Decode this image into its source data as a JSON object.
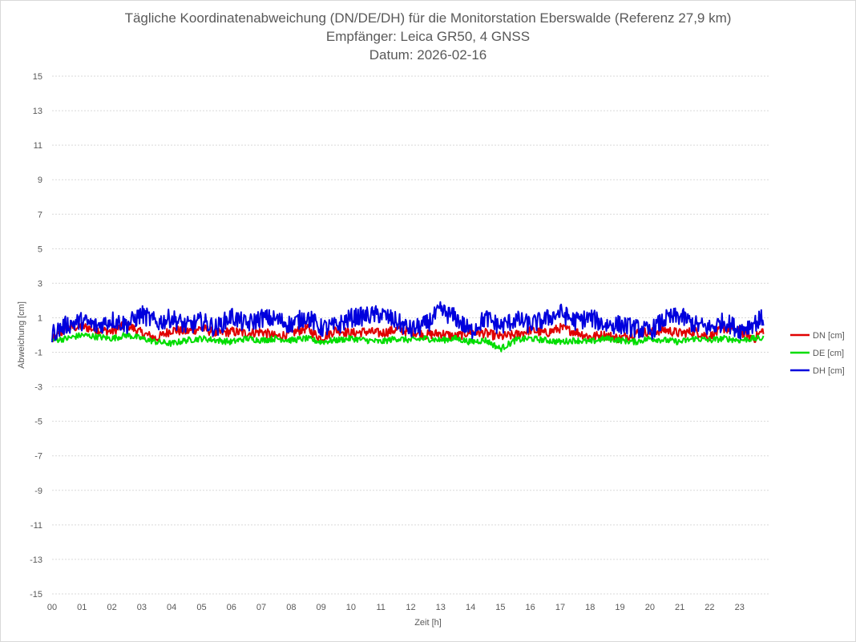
{
  "chart_data": {
    "type": "line",
    "title": "Tägliche Koordinatenabweichung (DN/DE/DH) für die Monitorstation Eberswalde (Referenz 27,9 km)",
    "subtitle": "Empfänger: Leica GR50, 4 GNSS",
    "date_label": "Datum: 2026-02-16",
    "xlabel": "Zeit [h]",
    "ylabel": "Abweichung [cm]",
    "xlim": [
      0,
      24
    ],
    "ylim": [
      -15,
      15
    ],
    "x_ticks": [
      "00",
      "01",
      "02",
      "03",
      "04",
      "05",
      "06",
      "07",
      "08",
      "09",
      "10",
      "11",
      "12",
      "13",
      "14",
      "15",
      "16",
      "17",
      "18",
      "19",
      "20",
      "21",
      "22",
      "23"
    ],
    "y_ticks": [
      15,
      13,
      11,
      9,
      7,
      5,
      3,
      1,
      -1,
      -3,
      -5,
      -7,
      -9,
      -11,
      -13,
      -15
    ],
    "y_tick_labels": [
      "15",
      "13",
      "11",
      "9",
      "7",
      "5",
      "3",
      "1",
      "-1",
      "-3",
      "-5",
      "-7",
      "-9",
      "-11",
      "-13",
      "-15"
    ],
    "grid": true,
    "legend_position": "right",
    "x": [
      0,
      0.5,
      1,
      1.5,
      2,
      2.5,
      3,
      3.5,
      4,
      4.5,
      5,
      5.5,
      6,
      6.5,
      7,
      7.5,
      8,
      8.5,
      9,
      9.5,
      10,
      10.5,
      11,
      11.5,
      12,
      12.5,
      13,
      13.5,
      14,
      14.5,
      15,
      15.5,
      16,
      16.5,
      17,
      17.5,
      18,
      18.5,
      19,
      19.5,
      20,
      20.5,
      21,
      21.5,
      22,
      22.5,
      23,
      23.5,
      23.8
    ],
    "series": [
      {
        "name": "DN [cm]",
        "color": "#e00000",
        "values": [
          -0.3,
          0.4,
          0.5,
          0.3,
          0.2,
          0.6,
          0.1,
          -0.2,
          0.3,
          0.2,
          0.4,
          0.1,
          0.2,
          0.1,
          0.2,
          -0.1,
          0.1,
          0.4,
          -0.2,
          0.3,
          0.1,
          0.2,
          0.1,
          0.3,
          0.2,
          0.0,
          0.1,
          -0.1,
          0.2,
          0.1,
          -0.1,
          0.0,
          0.3,
          0.1,
          0.4,
          0.2,
          -0.1,
          0.0,
          -0.2,
          0.1,
          0.2,
          0.3,
          0.1,
          0.2,
          -0.1,
          0.4,
          0.2,
          -0.2,
          0.3
        ]
      },
      {
        "name": "DE [cm]",
        "color": "#00dd00",
        "values": [
          -0.3,
          -0.2,
          0.0,
          -0.1,
          -0.2,
          0.0,
          -0.2,
          -0.4,
          -0.5,
          -0.3,
          -0.2,
          -0.3,
          -0.4,
          -0.2,
          -0.3,
          -0.2,
          -0.3,
          -0.2,
          -0.4,
          -0.3,
          -0.2,
          -0.3,
          -0.4,
          -0.2,
          -0.3,
          -0.2,
          -0.3,
          -0.2,
          -0.4,
          -0.3,
          -0.8,
          -0.3,
          -0.2,
          -0.3,
          -0.4,
          -0.3,
          -0.4,
          -0.2,
          -0.3,
          -0.4,
          -0.2,
          -0.3,
          -0.4,
          -0.2,
          -0.3,
          -0.2,
          -0.3,
          -0.2,
          -0.2
        ]
      },
      {
        "name": "DH [cm]",
        "color": "#0000dd",
        "values": [
          0.1,
          0.6,
          0.8,
          0.5,
          0.9,
          0.6,
          1.2,
          0.7,
          1.0,
          0.5,
          0.8,
          0.4,
          1.1,
          0.6,
          1.0,
          0.9,
          0.6,
          1.1,
          0.4,
          0.5,
          1.0,
          1.1,
          1.2,
          0.8,
          0.3,
          0.6,
          1.4,
          1.0,
          0.2,
          1.0,
          0.5,
          0.9,
          0.6,
          0.9,
          1.3,
          0.8,
          1.0,
          0.6,
          0.6,
          0.4,
          0.2,
          0.9,
          1.1,
          0.6,
          0.4,
          0.8,
          0.3,
          0.7,
          1.0
        ]
      }
    ]
  }
}
